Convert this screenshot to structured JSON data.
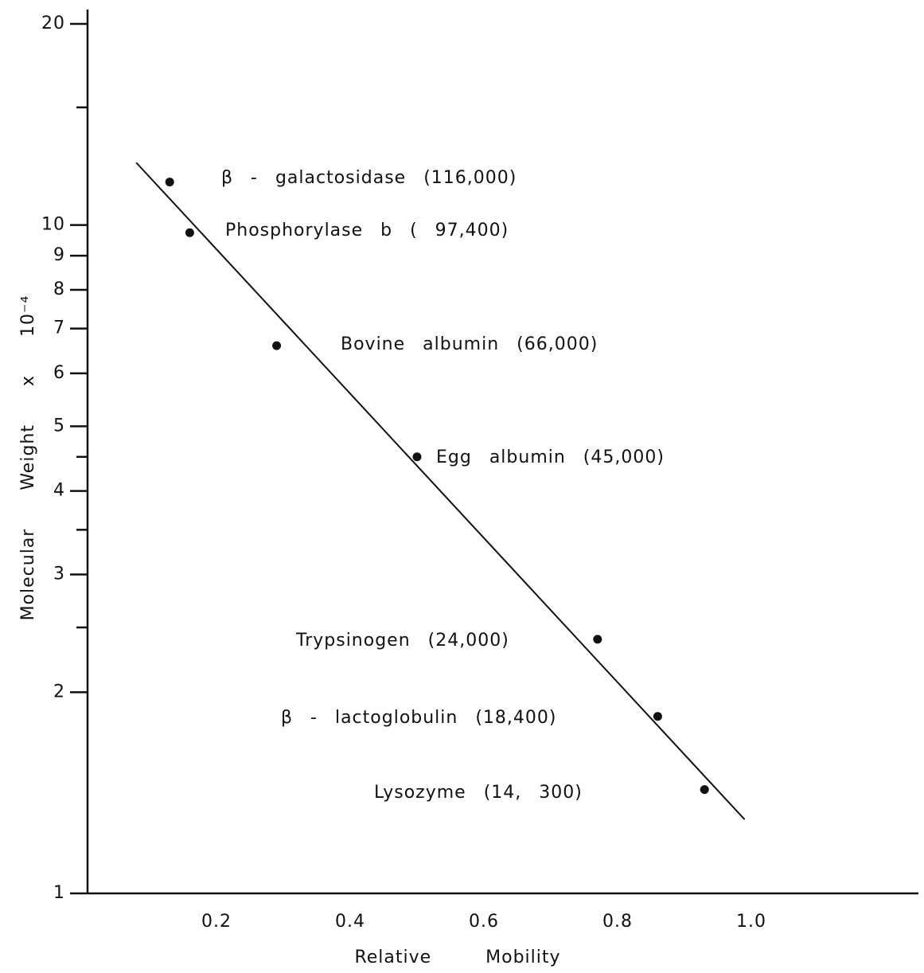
{
  "chart_data": {
    "type": "scatter",
    "x_label": "Relative Mobility",
    "y_label": "Molecular Weight x 10⁻⁴",
    "x": [
      0.13,
      0.16,
      0.29,
      0.5,
      0.77,
      0.86,
      0.93
    ],
    "values": [
      11.6,
      9.74,
      6.6,
      4.5,
      2.4,
      1.84,
      1.43
    ],
    "annotations": [
      "β - galactosidase (116,000)",
      "Phosphorylase b ( 97,400)",
      "Bovine albumin (66,000)",
      "Egg albumin (45,000)",
      "Trypsinogen (24,000)",
      "β - lactoglobulin (18,400)",
      "Lysozyme (14, 300)"
    ],
    "fit_line": {
      "x": [
        0.08,
        0.99
      ],
      "y": [
        12.4,
        1.29
      ]
    },
    "color": "#111111",
    "xlim": [
      0,
      1.25
    ],
    "xticks": [
      0.2,
      0.4,
      0.6,
      0.8,
      {
        "value": 1,
        "label": "1.0"
      }
    ],
    "ylim": [
      1,
      20
    ],
    "yscale": "log",
    "yticks": [
      1,
      2,
      3,
      4,
      5,
      6,
      7,
      8,
      9,
      10,
      20
    ],
    "minor_yticks": [
      2.5,
      3.5,
      4.5,
      15
    ]
  }
}
